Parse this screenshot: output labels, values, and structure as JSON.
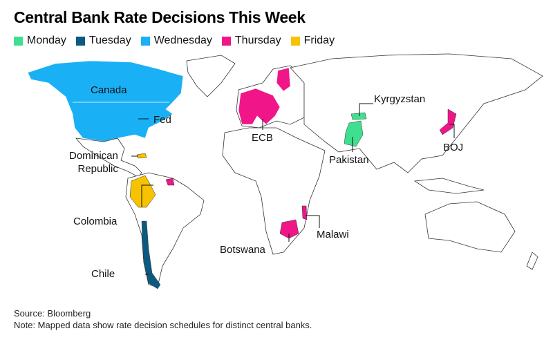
{
  "title": "Central Bank Rate Decisions This Week",
  "legend": [
    {
      "label": "Monday",
      "color": "#3ee08f"
    },
    {
      "label": "Tuesday",
      "color": "#0d5a80"
    },
    {
      "label": "Wednesday",
      "color": "#1ab0f5"
    },
    {
      "label": "Thursday",
      "color": "#f0168a"
    },
    {
      "label": "Friday",
      "color": "#f7c200"
    }
  ],
  "labels": {
    "canada": "Canada",
    "fed": "Fed",
    "dominican_republic": "Dominican\nRepublic",
    "colombia": "Colombia",
    "chile": "Chile",
    "ecb": "ECB",
    "kyrgyzstan": "Kyrgyzstan",
    "pakistan": "Pakistan",
    "boj": "BOJ",
    "malawi": "Malawi",
    "botswana": "Botswana"
  },
  "regions": {
    "Canada": "Wednesday",
    "Fed": "Wednesday",
    "Dominican Republic": "Friday",
    "Colombia": "Friday",
    "Chile": "Tuesday",
    "ECB": "Thursday",
    "Kyrgyzstan": "Monday",
    "Pakistan": "Monday",
    "BOJ": "Thursday",
    "Malawi": "Thursday",
    "Botswana": "Thursday"
  },
  "footer": {
    "source": "Source: Bloomberg",
    "note": "Note: Mapped data show rate decision schedules for distinct central banks."
  }
}
